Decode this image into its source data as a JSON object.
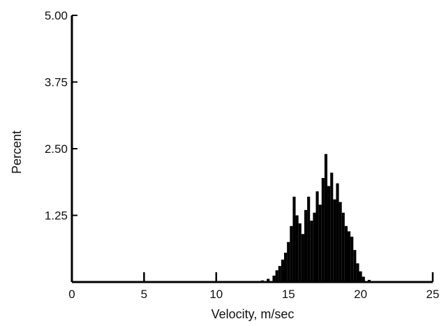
{
  "chart_data": {
    "type": "bar",
    "title": "",
    "xlabel": "Velocity, m/sec",
    "ylabel": "Percent",
    "xlim": [
      0,
      25
    ],
    "ylim": [
      0,
      5.0
    ],
    "xticks": [
      0,
      5,
      10,
      15,
      20,
      25
    ],
    "xtick_labels": [
      "0",
      "5",
      "10",
      "15",
      "20",
      "25"
    ],
    "yticks": [
      1.25,
      2.5,
      3.75,
      5.0
    ],
    "ytick_labels": [
      "1.25",
      "2.50",
      "3.75",
      "5.00"
    ],
    "grid": false,
    "legend": "none",
    "bar_color": "#000000",
    "x": [
      13.2,
      13.6,
      14.0,
      14.2,
      14.4,
      14.6,
      14.8,
      15.0,
      15.2,
      15.4,
      15.6,
      15.8,
      16.0,
      16.2,
      16.4,
      16.6,
      16.8,
      17.0,
      17.2,
      17.4,
      17.6,
      17.8,
      18.0,
      18.2,
      18.4,
      18.6,
      18.8,
      19.0,
      19.2,
      19.4,
      19.6,
      19.8,
      20.0,
      20.2,
      20.6
    ],
    "values": [
      0.03,
      0.06,
      0.12,
      0.22,
      0.3,
      0.42,
      0.55,
      0.75,
      1.05,
      1.6,
      1.25,
      1.1,
      0.9,
      1.35,
      1.6,
      1.15,
      1.3,
      1.7,
      1.45,
      1.95,
      2.4,
      1.8,
      2.05,
      1.55,
      1.85,
      1.5,
      1.3,
      1.05,
      0.95,
      0.85,
      0.6,
      0.35,
      0.2,
      0.1,
      0.04
    ]
  }
}
